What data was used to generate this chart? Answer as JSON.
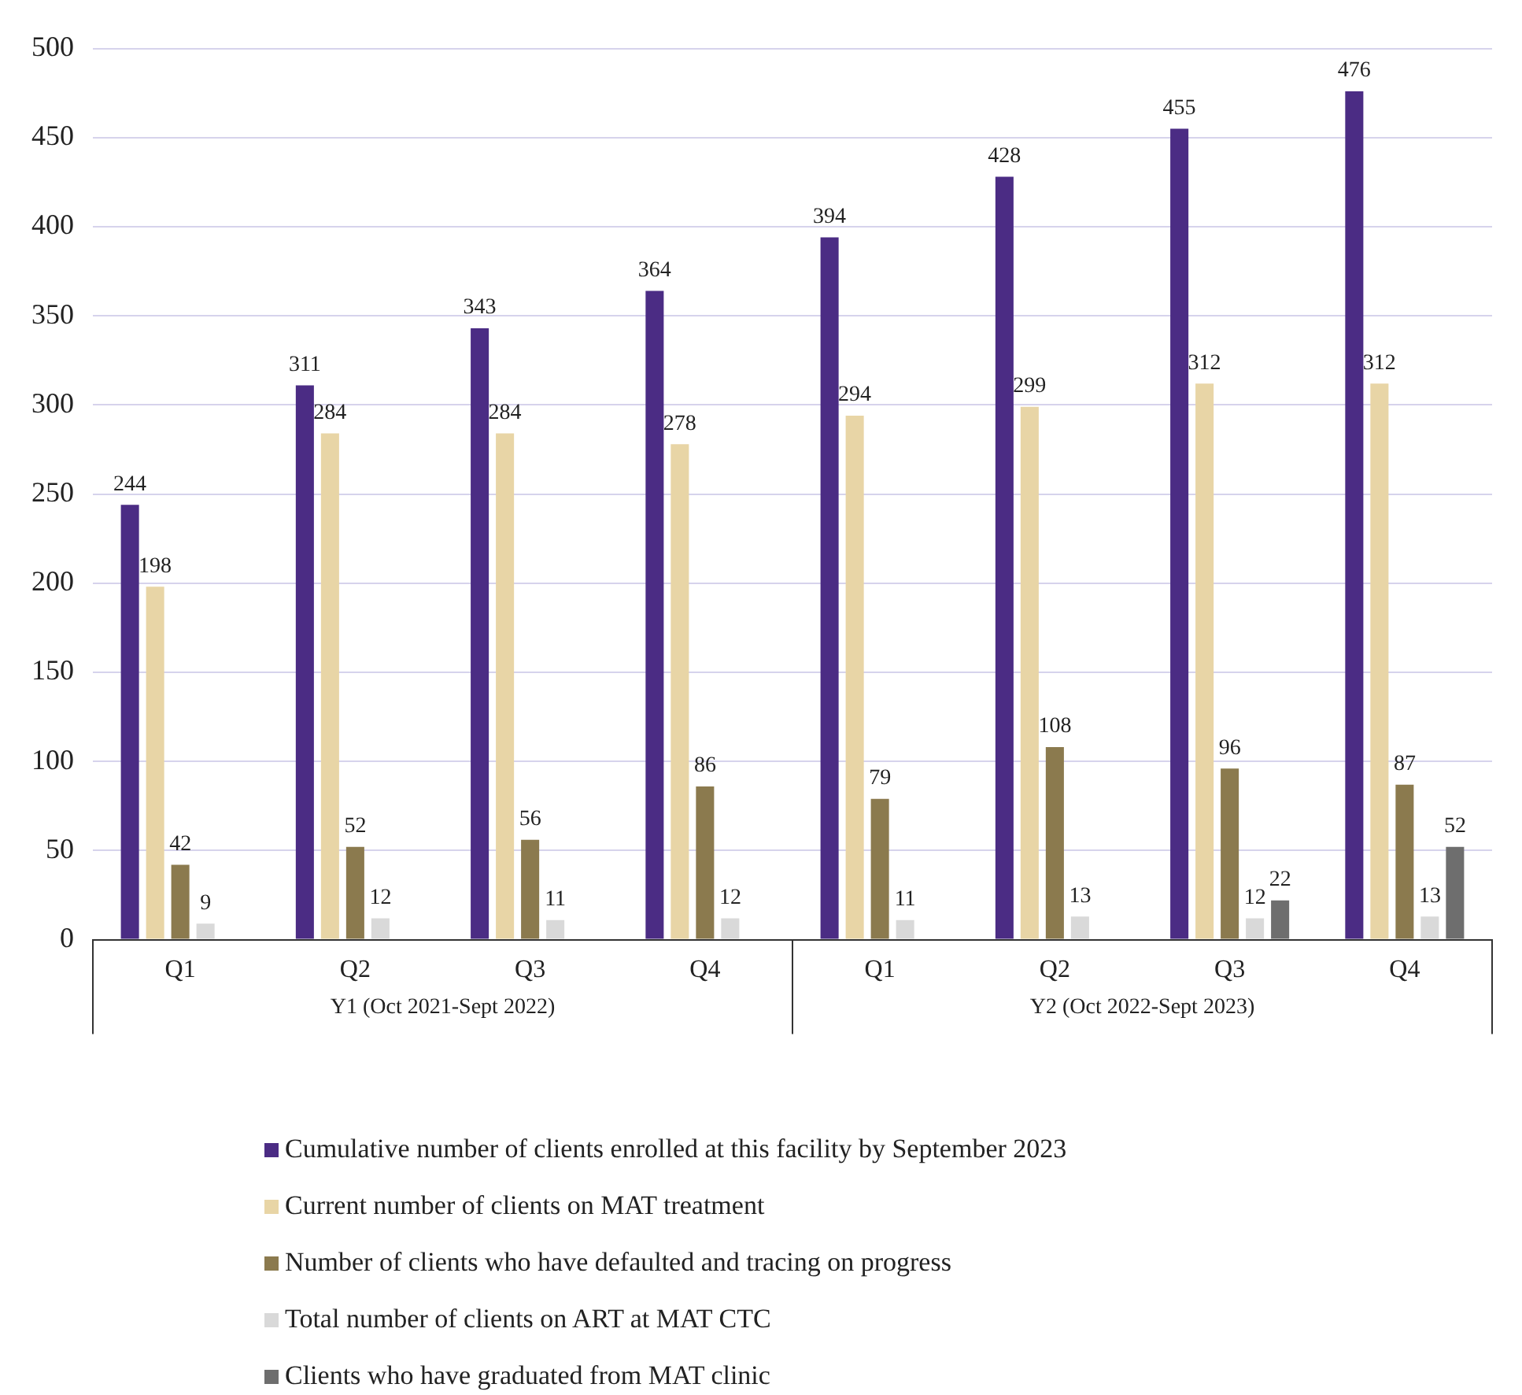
{
  "chart_data": {
    "type": "bar",
    "categories": [
      "Q1",
      "Q2",
      "Q3",
      "Q4",
      "Q1",
      "Q2",
      "Q3",
      "Q4"
    ],
    "series": [
      {
        "name": "Cumulative number of clients enrolled at this facility by September 2023",
        "color": "#4b2c84",
        "values": [
          244,
          311,
          343,
          364,
          394,
          428,
          455,
          476
        ]
      },
      {
        "name": "Current number of clients on MAT treatment",
        "color": "#e8d5a6",
        "values": [
          198,
          284,
          284,
          278,
          294,
          299,
          312,
          312
        ]
      },
      {
        "name": "Number of clients who have defaulted and tracing on progress",
        "color": "#8b7a4e",
        "values": [
          42,
          52,
          56,
          86,
          79,
          108,
          96,
          87
        ]
      },
      {
        "name": "Total number of clients on ART at MAT CTC",
        "color": "#d9d9d9",
        "values": [
          9,
          12,
          11,
          12,
          11,
          13,
          12,
          13
        ]
      },
      {
        "name": "Clients who have graduated from MAT clinic",
        "color": "#6e6e6e",
        "values": [
          null,
          null,
          null,
          null,
          null,
          null,
          22,
          52
        ]
      }
    ],
    "ylim": [
      0,
      500
    ],
    "yticks": [
      0,
      50,
      100,
      150,
      200,
      250,
      300,
      350,
      400,
      450,
      500
    ],
    "grid": "y",
    "legend": "bottom",
    "data_labels": true,
    "annotations": [
      "Y1 (Oct 2021-Sept 2022)",
      "Y2 (Oct 2022-Sept 2023)"
    ]
  }
}
